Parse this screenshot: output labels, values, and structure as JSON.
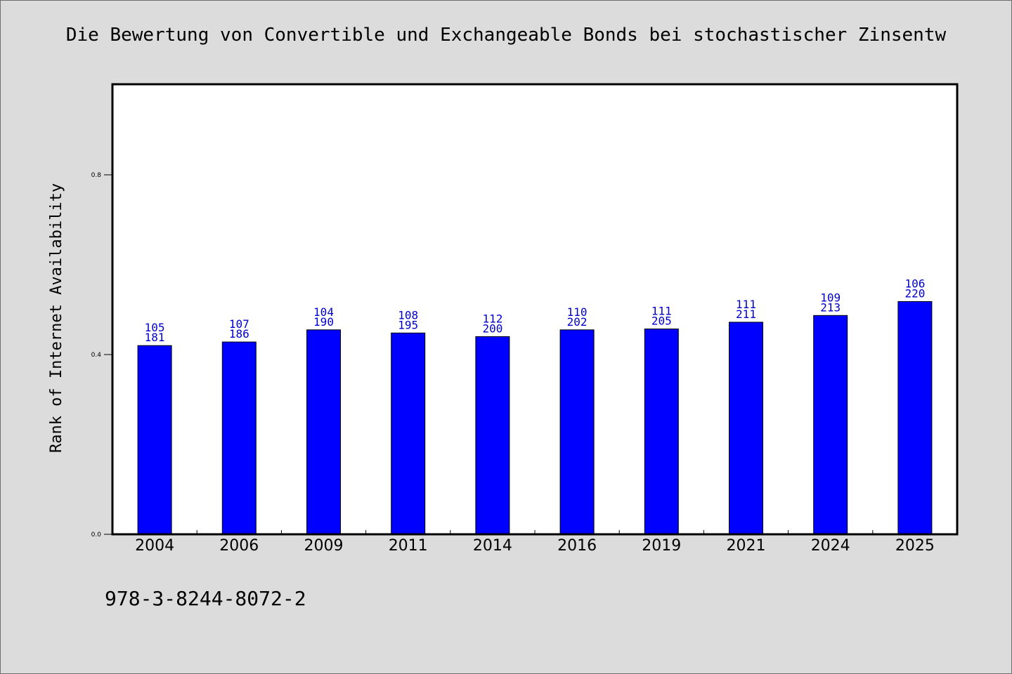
{
  "chart_data": {
    "type": "bar",
    "title": "Die Bewertung von Convertible und Exchangeable Bonds bei stochastischer Zinsentw",
    "xlabel": "",
    "ylabel": "Rank of Internet Availability",
    "categories": [
      "2004",
      "2006",
      "2009",
      "2011",
      "2014",
      "2016",
      "2019",
      "2021",
      "2024",
      "2025"
    ],
    "values": [
      0.42,
      0.428,
      0.455,
      0.448,
      0.44,
      0.455,
      0.457,
      0.472,
      0.487,
      0.518
    ],
    "label_top": [
      "105",
      "107",
      "104",
      "108",
      "112",
      "110",
      "111",
      "111",
      "109",
      "106"
    ],
    "label_bottom": [
      "181",
      "186",
      "190",
      "195",
      "200",
      "202",
      "205",
      "211",
      "213",
      "220"
    ],
    "ylim": [
      0,
      1.0
    ],
    "yticks": [
      0.0,
      0.4,
      0.8
    ],
    "ytick_labels": [
      "0.0",
      "0.4",
      "0.8"
    ],
    "bar_color": "#0000ff",
    "label_color": "#0000cc",
    "grid": false,
    "legend": "none"
  },
  "footer": {
    "isbn": "978-3-8244-8072-2"
  }
}
